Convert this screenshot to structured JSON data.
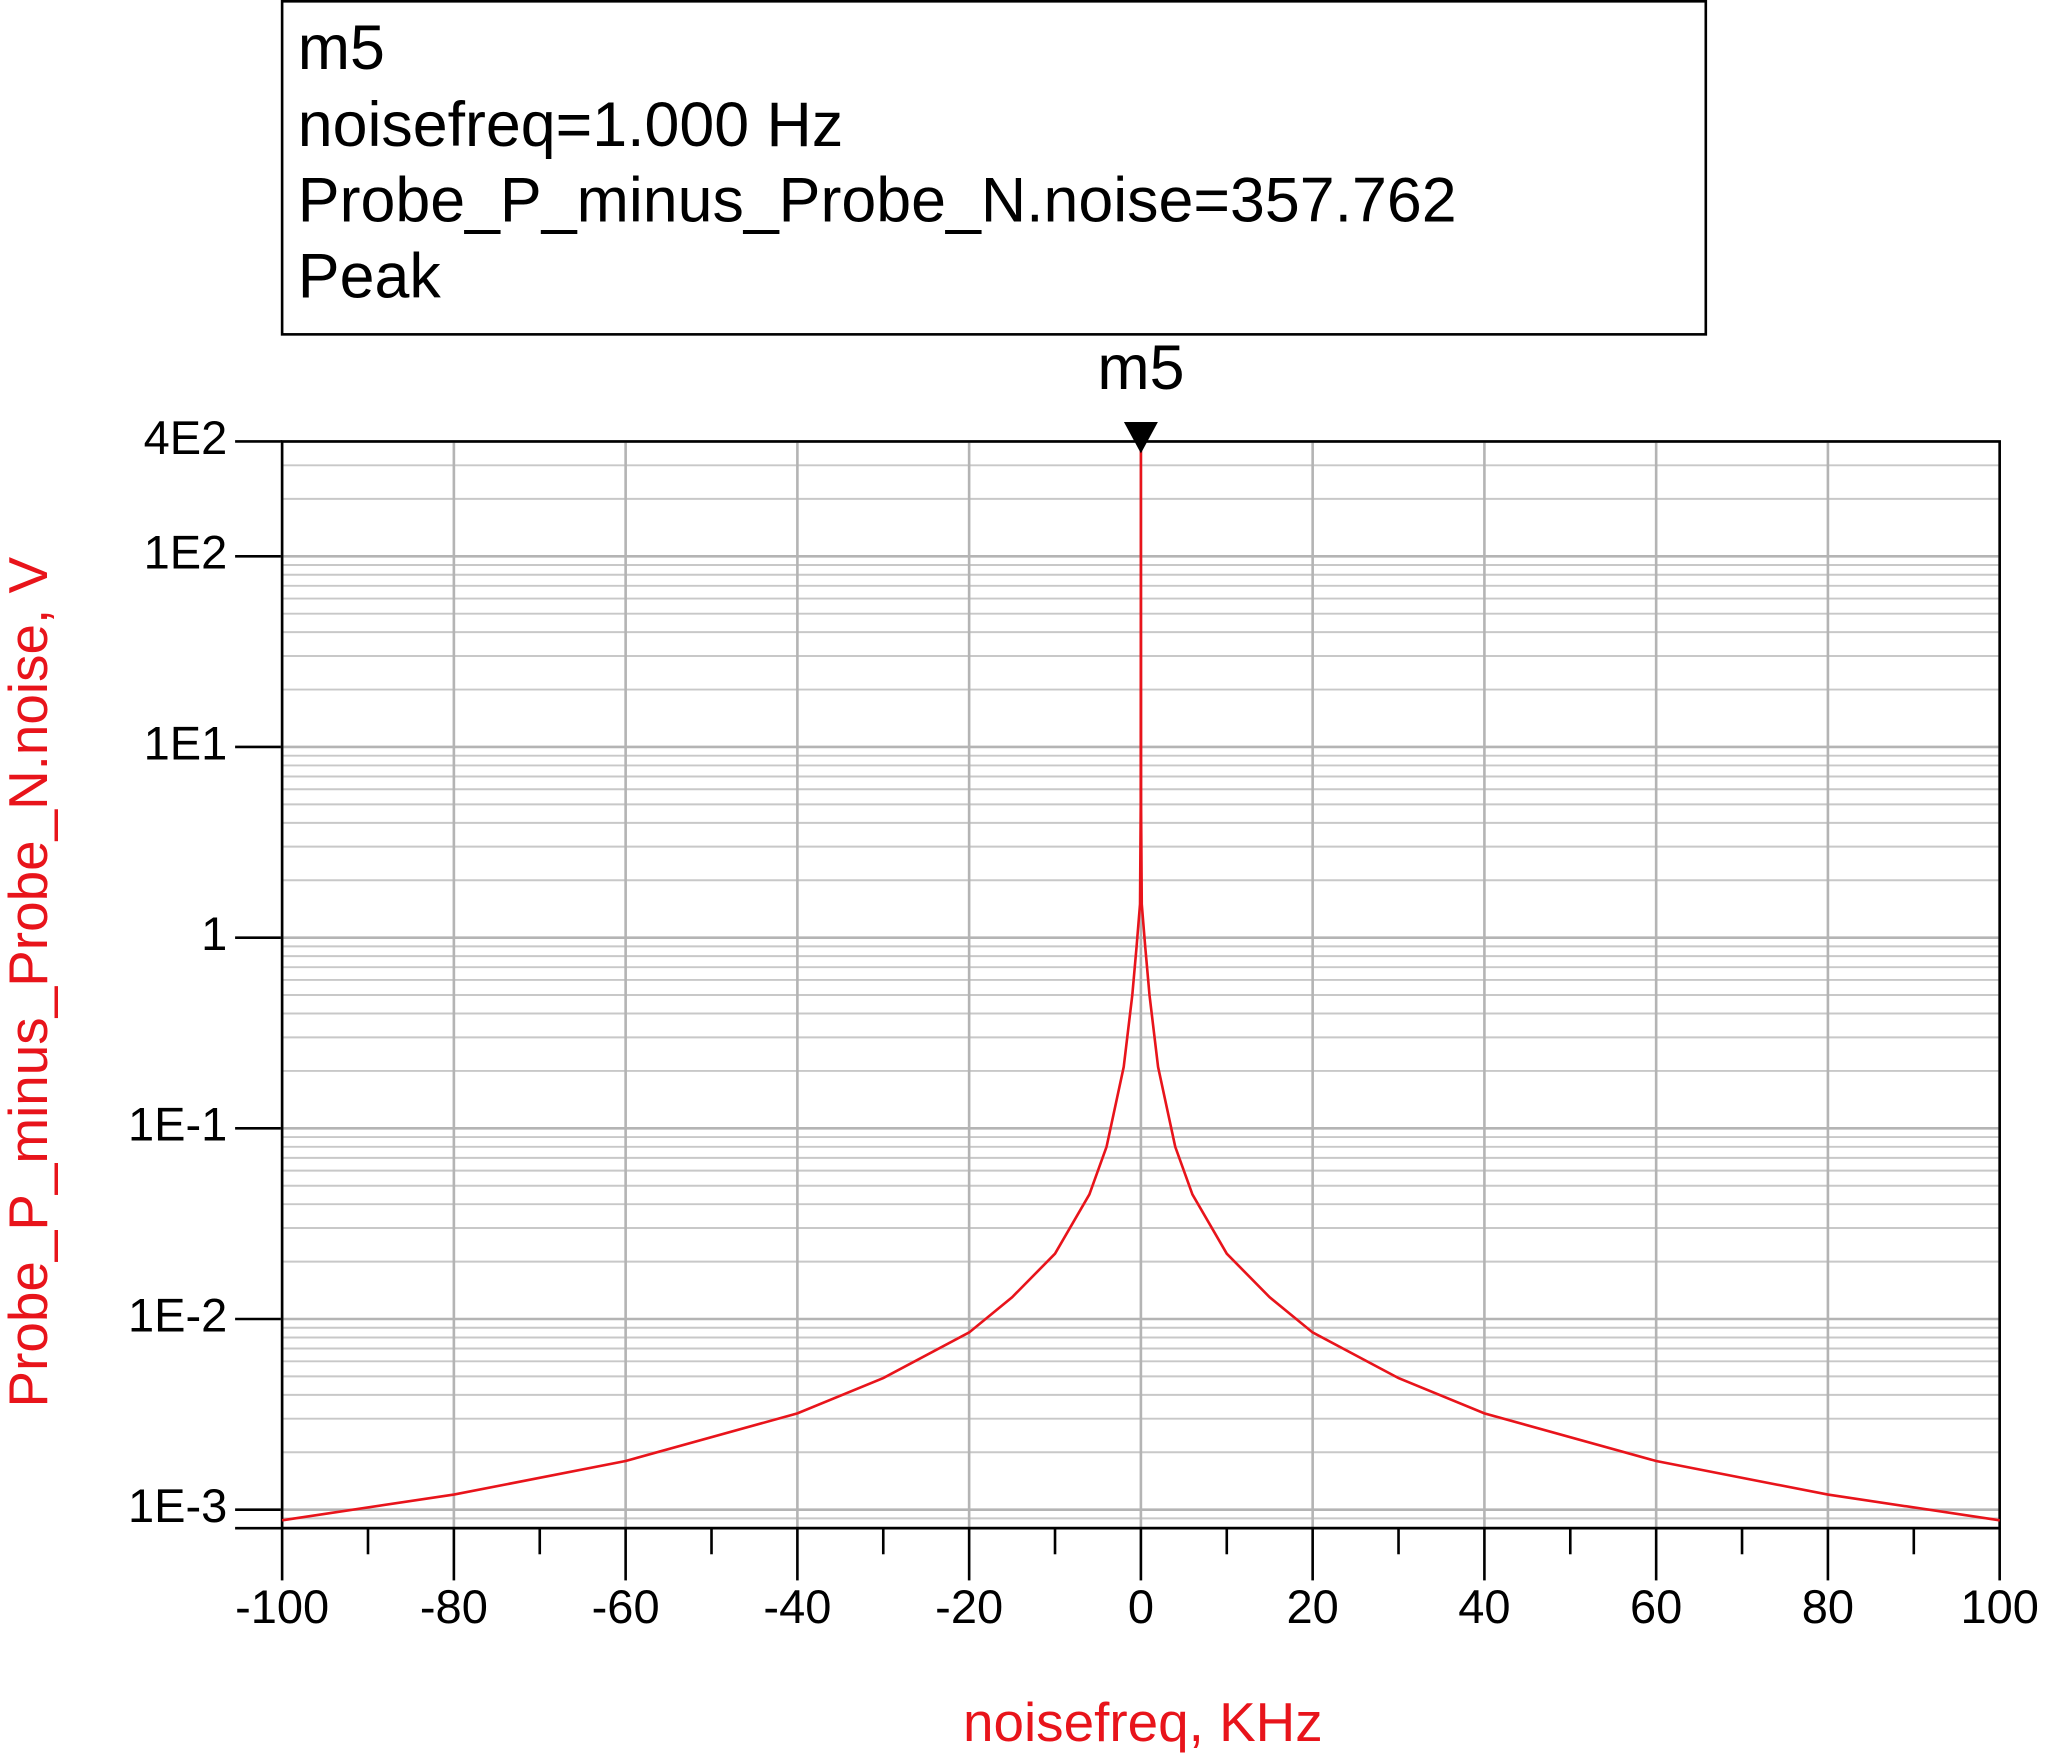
{
  "chart_data": {
    "type": "line",
    "x_label": "noisefreq, KHz",
    "y_label": "Probe_P_minus_Probe_N.noise, V",
    "x": [
      -100,
      -80,
      -60,
      -40,
      -30,
      -20,
      -15,
      -10,
      -6,
      -4,
      -2,
      -1,
      -0.5,
      -0.1,
      -0.02,
      0.001,
      0.02,
      0.1,
      0.5,
      1,
      2,
      4,
      6,
      10,
      15,
      20,
      30,
      40,
      60,
      80,
      100
    ],
    "series": [
      {
        "name": "Probe_P_minus_Probe_N.noise",
        "color": "#e8141b",
        "values": [
          0.00088,
          0.0012,
          0.0018,
          0.0032,
          0.0049,
          0.0085,
          0.013,
          0.022,
          0.045,
          0.08,
          0.21,
          0.5,
          0.9,
          1.5,
          5,
          357.762,
          5,
          1.5,
          0.9,
          0.5,
          0.21,
          0.08,
          0.045,
          0.022,
          0.013,
          0.0085,
          0.0049,
          0.0032,
          0.0018,
          0.0012,
          0.00088
        ]
      }
    ],
    "xlim": [
      -100,
      100
    ],
    "xticks": [
      -100,
      -80,
      -60,
      -40,
      -20,
      0,
      20,
      40,
      60,
      80,
      100
    ],
    "ylim": [
      0.0008,
      400
    ],
    "yticks": [
      {
        "value": 0.001,
        "label": "1E-3"
      },
      {
        "value": 0.01,
        "label": "1E-2"
      },
      {
        "value": 0.1,
        "label": "1E-1"
      },
      1,
      {
        "value": 10,
        "label": "1E1"
      },
      {
        "value": 100,
        "label": "1E2"
      },
      {
        "value": 400,
        "label": "4E2"
      }
    ],
    "log_y": true,
    "grid": true,
    "minor_grid": true,
    "marker": {
      "name": "m5",
      "point": 15,
      "lines": [
        "m5",
        "noisefreq=1.000 Hz",
        "Probe_P_minus_Probe_N.noise=357.762",
        "Peak"
      ]
    }
  }
}
